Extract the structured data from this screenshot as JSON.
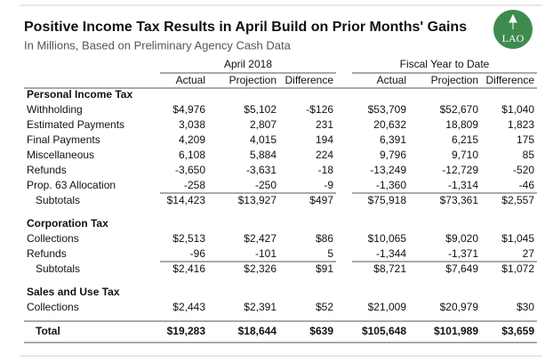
{
  "header": {
    "title": "Positive Income Tax Results in April Build on Prior Months' Gains",
    "subtitle": "In Millions, Based on Preliminary Agency Cash Data",
    "logo": "LAO"
  },
  "column_groups": [
    "April 2018",
    "Fiscal Year to Date"
  ],
  "columns": [
    "Actual",
    "Projection",
    "Difference",
    "Actual",
    "Projection",
    "Difference"
  ],
  "sections": [
    {
      "name": "Personal Income Tax",
      "rows": [
        {
          "label": "Withholding",
          "cells": [
            "$4,976",
            "$5,102",
            "-$126",
            "$53,709",
            "$52,670",
            "$1,040"
          ]
        },
        {
          "label": "Estimated Payments",
          "cells": [
            "3,038",
            "2,807",
            "231",
            "20,632",
            "18,809",
            "1,823"
          ]
        },
        {
          "label": "Final Payments",
          "cells": [
            "4,209",
            "4,015",
            "194",
            "6,391",
            "6,215",
            "175"
          ]
        },
        {
          "label": "Miscellaneous",
          "cells": [
            "6,108",
            "5,884",
            "224",
            "9,796",
            "9,710",
            "85"
          ]
        },
        {
          "label": "Refunds",
          "cells": [
            "-3,650",
            "-3,631",
            "-18",
            "-13,249",
            "-12,729",
            "-520"
          ]
        },
        {
          "label": "Prop. 63 Allocation",
          "cells": [
            "-258",
            "-250",
            "-9",
            "-1,360",
            "-1,314",
            "-46"
          ]
        }
      ],
      "subtotal": {
        "label": "Subtotals",
        "cells": [
          "$14,423",
          "$13,927",
          "$497",
          "$75,918",
          "$73,361",
          "$2,557"
        ]
      }
    },
    {
      "name": "Corporation Tax",
      "rows": [
        {
          "label": "Collections",
          "cells": [
            "$2,513",
            "$2,427",
            "$86",
            "$10,065",
            "$9,020",
            "$1,045"
          ]
        },
        {
          "label": "Refunds",
          "cells": [
            "-96",
            "-101",
            "5",
            "-1,344",
            "-1,371",
            "27"
          ]
        }
      ],
      "subtotal": {
        "label": "Subtotals",
        "cells": [
          "$2,416",
          "$2,326",
          "$91",
          "$8,721",
          "$7,649",
          "$1,072"
        ]
      }
    },
    {
      "name": "Sales and Use Tax",
      "rows": [
        {
          "label": "Collections",
          "cells": [
            "$2,443",
            "$2,391",
            "$52",
            "$21,009",
            "$20,979",
            "$30"
          ]
        }
      ]
    }
  ],
  "total": {
    "label": "Total",
    "cells": [
      "$19,283",
      "$18,644",
      "$639",
      "$105,648",
      "$101,989",
      "$3,659"
    ]
  }
}
